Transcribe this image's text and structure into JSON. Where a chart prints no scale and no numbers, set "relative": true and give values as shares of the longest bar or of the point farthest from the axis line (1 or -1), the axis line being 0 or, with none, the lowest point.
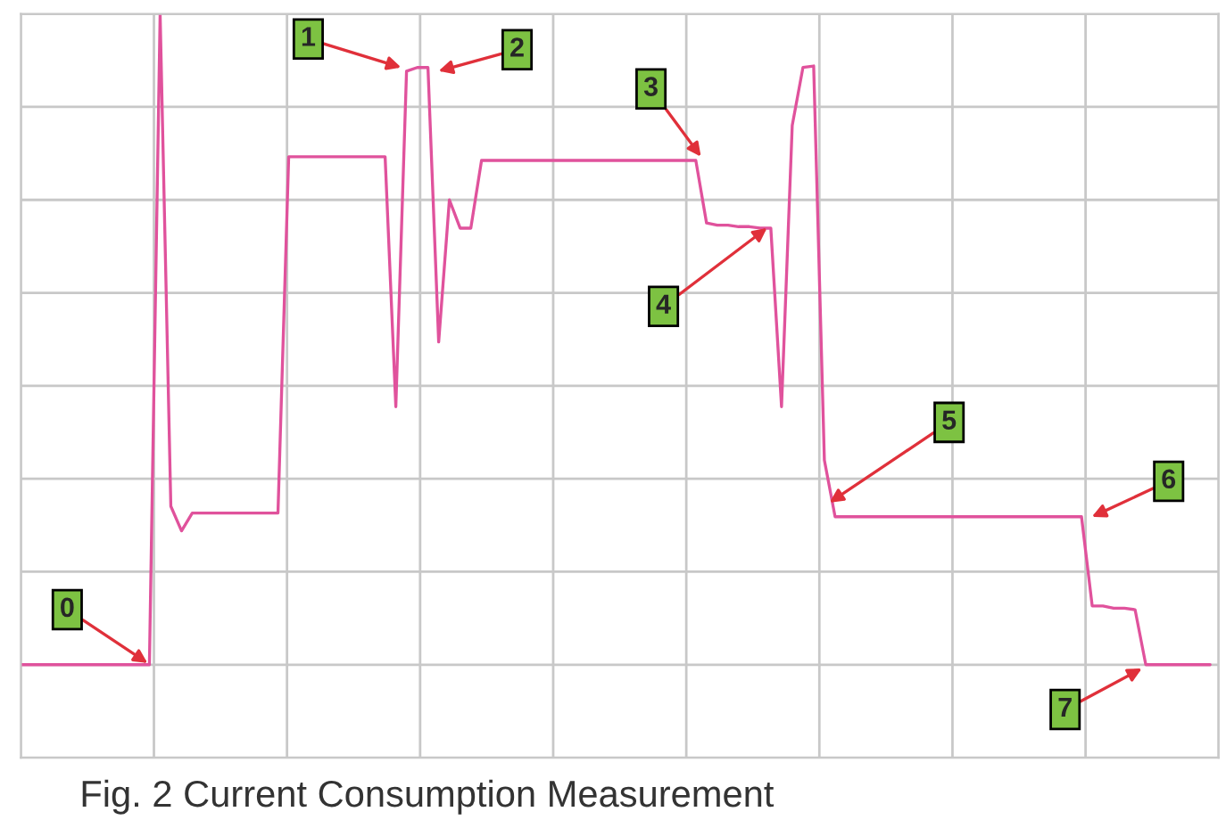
{
  "chart_data": {
    "type": "line",
    "title": "Fig. 2 Current Consumption Measurement",
    "relative": true,
    "grid": true,
    "tick_labels": false,
    "categories": [
      null,
      null,
      null,
      null,
      null,
      null,
      null,
      null,
      null,
      null,
      null,
      null,
      null,
      null,
      null,
      null,
      null,
      null,
      null,
      null,
      null,
      null,
      null,
      null,
      null,
      null,
      null,
      null,
      null,
      null,
      null,
      null,
      null,
      null,
      null,
      null,
      null,
      null,
      null,
      null,
      null,
      null,
      null,
      null,
      null,
      null,
      null,
      null,
      null,
      null,
      null,
      null,
      null,
      null,
      null,
      null,
      null,
      null,
      null,
      null,
      null,
      null,
      null,
      null,
      null,
      null,
      null,
      null,
      null,
      null,
      null,
      null,
      null,
      null,
      null,
      null,
      null,
      null,
      null,
      null,
      null,
      null,
      null,
      null,
      null,
      null,
      null,
      null,
      null,
      null,
      null,
      null,
      null,
      null,
      null,
      null,
      null,
      null,
      null,
      null,
      null,
      null,
      null,
      null,
      null,
      null,
      null,
      null,
      null,
      null,
      null,
      null
    ],
    "series": [
      {
        "color": "#e0529c",
        "values": [
          0.125,
          0.125,
          0.125,
          0.125,
          0.125,
          0.125,
          0.125,
          0.125,
          0.125,
          0.125,
          0.125,
          0.125,
          0.125,
          1.0,
          0.338,
          0.305,
          0.329,
          0.329,
          0.329,
          0.329,
          0.329,
          0.329,
          0.329,
          0.329,
          0.329,
          0.808,
          0.808,
          0.808,
          0.808,
          0.808,
          0.808,
          0.808,
          0.808,
          0.808,
          0.808,
          0.472,
          0.923,
          0.928,
          0.928,
          0.559,
          0.75,
          0.712,
          0.712,
          0.803,
          0.803,
          0.803,
          0.803,
          0.803,
          0.803,
          0.803,
          0.803,
          0.803,
          0.803,
          0.803,
          0.803,
          0.803,
          0.803,
          0.803,
          0.803,
          0.803,
          0.803,
          0.803,
          0.803,
          0.803,
          0.719,
          0.716,
          0.716,
          0.714,
          0.714,
          0.712,
          0.712,
          0.472,
          0.85,
          0.928,
          0.93,
          0.4,
          0.324,
          0.324,
          0.324,
          0.324,
          0.324,
          0.324,
          0.324,
          0.324,
          0.324,
          0.324,
          0.324,
          0.324,
          0.324,
          0.324,
          0.324,
          0.324,
          0.324,
          0.324,
          0.324,
          0.324,
          0.324,
          0.324,
          0.324,
          0.324,
          0.204,
          0.204,
          0.201,
          0.201,
          0.199,
          0.125,
          0.125,
          0.125,
          0.125,
          0.125,
          0.125,
          0.125
        ]
      }
    ],
    "annotations": [
      "0",
      "1",
      "2",
      "3",
      "4",
      "5",
      "6",
      "7"
    ]
  }
}
